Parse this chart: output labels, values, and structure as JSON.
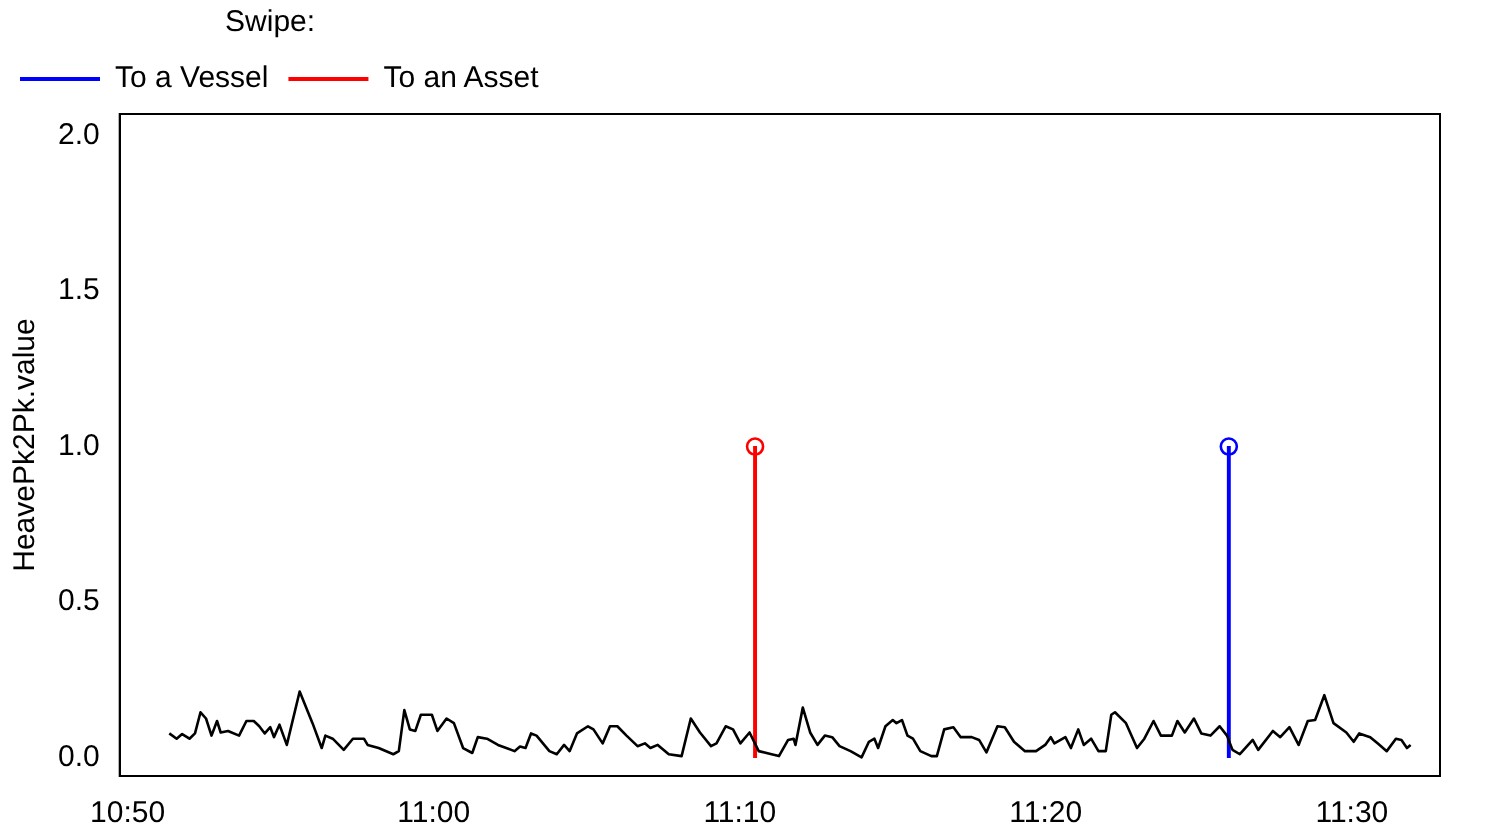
{
  "chart_data": {
    "type": "line",
    "ylabel": "HeavePk2Pk.value",
    "legend_title": "Swipe:",
    "legend": "top left",
    "grid": false,
    "marker": "none",
    "xlim": [
      10.829,
      11.548
    ],
    "xticks": [
      {
        "value": 10.8333,
        "label": "10:50"
      },
      {
        "value": 11,
        "label": "11:00"
      },
      {
        "value": 11.1667,
        "label": "11:10"
      },
      {
        "value": 11.3333,
        "label": "11:20"
      },
      {
        "value": 11.5,
        "label": "11:30"
      }
    ],
    "ylim": [
      -0.06,
      2.07
    ],
    "yticks": [
      {
        "value": 0,
        "label": "0.0"
      },
      0.5,
      {
        "value": 1,
        "label": "1.0"
      },
      1.5,
      {
        "value": 2,
        "label": "2.0"
      }
    ],
    "series": [
      {
        "color": "#000000",
        "x": [
          10.856,
          10.86,
          10.863,
          10.867,
          10.87,
          10.873,
          10.876,
          10.879,
          10.882,
          10.884,
          10.888,
          10.894,
          10.898,
          10.902,
          10.905,
          10.908,
          10.911,
          10.913,
          10.916,
          10.92,
          10.927,
          10.934,
          10.939,
          10.941,
          10.945,
          10.951,
          10.956,
          10.962,
          10.964,
          10.97,
          10.978,
          10.981,
          10.984,
          10.987,
          10.99,
          10.993,
          10.999,
          11.002,
          11.007,
          11.011,
          11.016,
          11.021,
          11.024,
          11.029,
          11.035,
          11.044,
          11.047,
          11.05,
          11.053,
          11.056,
          11.063,
          11.067,
          11.071,
          11.074,
          11.078,
          11.084,
          11.087,
          11.092,
          11.096,
          11.1,
          11.105,
          11.111,
          11.115,
          11.118,
          11.122,
          11.128,
          11.135,
          11.14,
          11.145,
          11.151,
          11.154,
          11.159,
          11.163,
          11.167,
          11.172,
          11.177,
          11.184,
          11.188,
          11.193,
          11.196,
          11.197,
          11.201,
          11.205,
          11.209,
          11.213,
          11.217,
          11.221,
          11.227,
          11.233,
          11.237,
          11.24,
          11.242,
          11.246,
          11.25,
          11.252,
          11.255,
          11.258,
          11.261,
          11.265,
          11.271,
          11.274,
          11.278,
          11.283,
          11.287,
          11.293,
          11.297,
          11.301,
          11.307,
          11.311,
          11.316,
          11.322,
          11.328,
          11.333,
          11.336,
          11.338,
          11.344,
          11.347,
          11.351,
          11.354,
          11.358,
          11.362,
          11.366,
          11.369,
          11.371,
          11.377,
          11.383,
          11.387,
          11.392,
          11.396,
          11.402,
          11.405,
          11.409,
          11.414,
          11.418,
          11.423,
          11.428,
          11.432,
          11.435,
          11.439,
          11.446,
          11.449,
          11.457,
          11.461,
          11.466,
          11.471,
          11.476,
          11.48,
          11.485,
          11.49,
          11.497,
          11.501,
          11.504,
          11.51,
          11.514,
          11.519,
          11.524,
          11.527,
          11.53,
          11.532
        ],
        "values": [
          0.077,
          0.06,
          0.075,
          0.06,
          0.077,
          0.145,
          0.125,
          0.07,
          0.117,
          0.08,
          0.085,
          0.07,
          0.117,
          0.117,
          0.1,
          0.077,
          0.097,
          0.065,
          0.105,
          0.04,
          0.212,
          0.11,
          0.03,
          0.07,
          0.06,
          0.024,
          0.06,
          0.06,
          0.04,
          0.03,
          0.01,
          0.02,
          0.152,
          0.09,
          0.085,
          0.137,
          0.137,
          0.085,
          0.125,
          0.11,
          0.03,
          0.014,
          0.065,
          0.06,
          0.04,
          0.02,
          0.035,
          0.03,
          0.077,
          0.07,
          0.02,
          0.01,
          0.04,
          0.02,
          0.077,
          0.1,
          0.09,
          0.045,
          0.1,
          0.1,
          0.07,
          0.036,
          0.045,
          0.03,
          0.04,
          0.01,
          0.004,
          0.125,
          0.08,
          0.036,
          0.045,
          0.1,
          0.09,
          0.045,
          0.08,
          0.02,
          0.01,
          0.004,
          0.056,
          0.06,
          0.04,
          0.16,
          0.08,
          0.04,
          0.07,
          0.065,
          0.036,
          0.02,
          0.0,
          0.05,
          0.06,
          0.03,
          0.1,
          0.12,
          0.11,
          0.12,
          0.07,
          0.06,
          0.02,
          0.004,
          0.004,
          0.09,
          0.097,
          0.065,
          0.065,
          0.056,
          0.016,
          0.1,
          0.097,
          0.05,
          0.02,
          0.02,
          0.04,
          0.065,
          0.045,
          0.065,
          0.03,
          0.09,
          0.04,
          0.06,
          0.02,
          0.02,
          0.137,
          0.145,
          0.11,
          0.03,
          0.06,
          0.117,
          0.07,
          0.07,
          0.117,
          0.08,
          0.125,
          0.077,
          0.07,
          0.1,
          0.07,
          0.024,
          0.01,
          0.056,
          0.024,
          0.085,
          0.065,
          0.097,
          0.04,
          0.117,
          0.12,
          0.2,
          0.11,
          0.08,
          0.05,
          0.077,
          0.065,
          0.045,
          0.02,
          0.06,
          0.056,
          0.03,
          0.04
        ]
      },
      {
        "type": "lollipop",
        "name": "To a Vessel",
        "color": "#0000ff",
        "x": [
          11.433
        ],
        "values": [
          1
        ],
        "marker": "circle"
      },
      {
        "type": "lollipop",
        "name": "To an Asset",
        "color": "#ff0000",
        "x": [
          11.175
        ],
        "values": [
          1
        ],
        "marker": "circle"
      }
    ]
  }
}
